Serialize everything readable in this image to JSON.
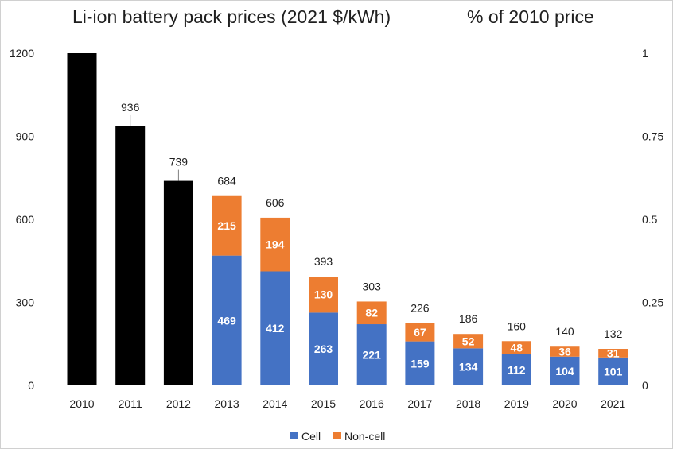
{
  "chart_data": {
    "type": "bar",
    "title": "Li-ion battery pack prices (2021 $/kWh)",
    "secondary_axis_title": "% of 2010 price",
    "categories": [
      "2010",
      "2011",
      "2012",
      "2013",
      "2014",
      "2015",
      "2016",
      "2017",
      "2018",
      "2019",
      "2020",
      "2021"
    ],
    "totals": [
      1200,
      936,
      739,
      684,
      606,
      393,
      303,
      226,
      186,
      160,
      140,
      132
    ],
    "total_labels": [
      "",
      "936",
      "739",
      "684",
      "606",
      "393",
      "303",
      "226",
      "186",
      "160",
      "140",
      "132"
    ],
    "series": [
      {
        "name": "Cell",
        "color": "#4472c4",
        "values": [
          null,
          null,
          null,
          469,
          412,
          263,
          221,
          159,
          134,
          112,
          104,
          101
        ]
      },
      {
        "name": "Non-cell",
        "color": "#ed7d31",
        "values": [
          null,
          null,
          null,
          215,
          194,
          130,
          82,
          67,
          52,
          48,
          36,
          31
        ]
      }
    ],
    "total_only_color": "#000000",
    "ylim": [
      0,
      1200
    ],
    "yticks": [
      0,
      300,
      600,
      900,
      1200
    ],
    "y2lim": [
      0,
      1
    ],
    "y2ticks": [
      "0",
      "0.25",
      "0.5",
      "0.75",
      "1"
    ],
    "legend": "bottom",
    "grid": false
  }
}
